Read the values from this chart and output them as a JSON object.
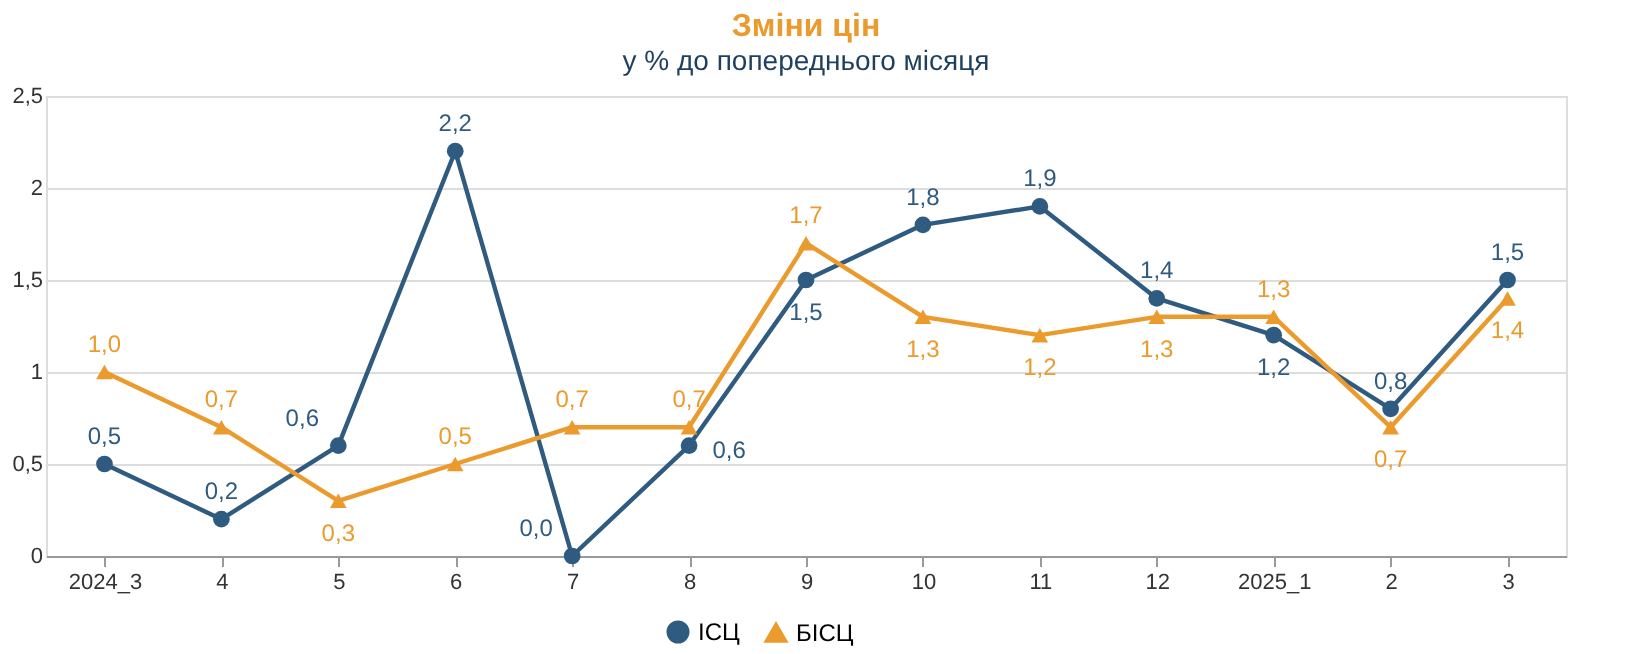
{
  "chart_data": {
    "type": "line",
    "title": "Зміни цін",
    "subtitle": "у % до попереднього місяця",
    "categories": [
      "2024_3",
      "4",
      "5",
      "6",
      "7",
      "8",
      "9",
      "10",
      "11",
      "12",
      "2025_1",
      "2",
      "3"
    ],
    "series": [
      {
        "name": "ІСЦ",
        "color": "#2f5b80",
        "marker": "circle",
        "values": [
          0.5,
          0.2,
          0.6,
          2.2,
          0.0,
          0.6,
          1.5,
          1.8,
          1.9,
          1.4,
          1.2,
          0.8,
          1.5
        ],
        "value_labels": [
          "0,5",
          "0,2",
          "0,6",
          "2,2",
          "0,0",
          "0,6",
          "1,5",
          "1,8",
          "1,9",
          "1,4",
          "1,2",
          "0,8",
          "1,5"
        ]
      },
      {
        "name": "БІСЦ",
        "color": "#eb9b2e",
        "marker": "triangle",
        "values": [
          1.0,
          0.7,
          0.3,
          0.5,
          0.7,
          0.7,
          1.7,
          1.3,
          1.2,
          1.3,
          1.3,
          0.7,
          1.4
        ],
        "value_labels": [
          "1,0",
          "0,7",
          "0,3",
          "0,5",
          "0,7",
          "0,7",
          "1,7",
          "1,3",
          "1,2",
          "1,3",
          "1,3",
          "0,7",
          "1,4"
        ]
      }
    ],
    "ylim": [
      0,
      2.5
    ],
    "yticks": [
      0,
      {
        "value": 0.5,
        "label": "0,5"
      },
      1,
      {
        "value": 1.5,
        "label": "1,5"
      },
      2,
      {
        "value": 2.5,
        "label": "2,5"
      }
    ],
    "grid": "y",
    "legend": "bottom",
    "line_style": "solid"
  }
}
